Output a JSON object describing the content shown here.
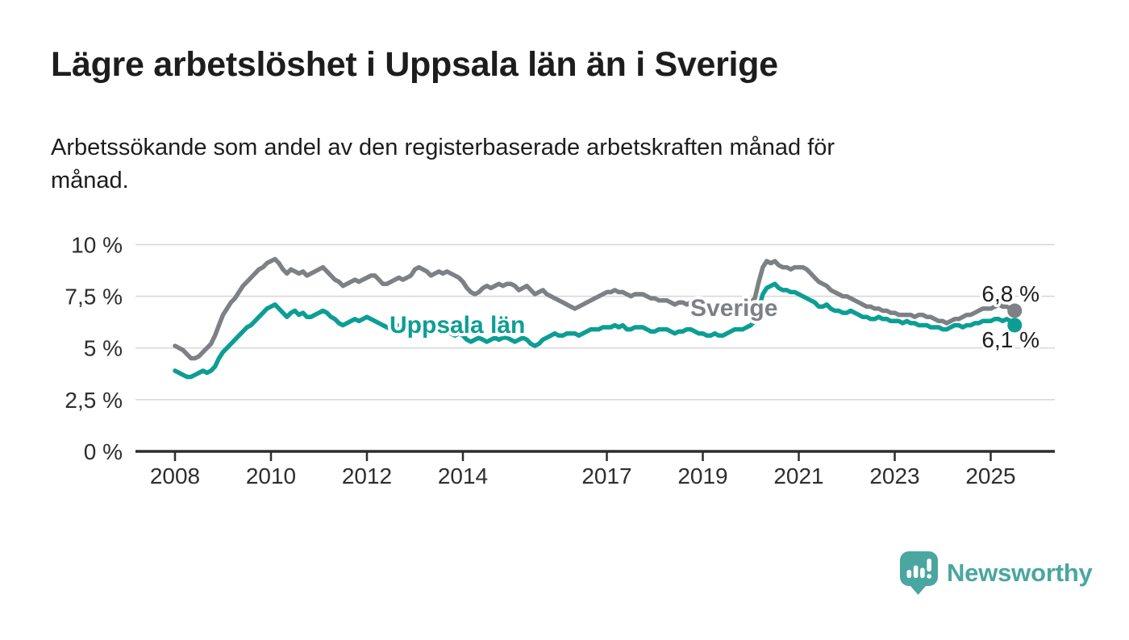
{
  "header": {
    "title": "Lägre arbetslöshet i Uppsala län än i Sverige",
    "subtitle_lines": [
      "Arbetssökande som andel av den registerbaserade arbetskraften månad för",
      "månad."
    ]
  },
  "chart_data": {
    "type": "line",
    "unit": "%",
    "frequency": "monthly",
    "start_year": 2008,
    "start_month": 1,
    "x_axis": {
      "ticks": [
        2008,
        2010,
        2012,
        2014,
        2017,
        2019,
        2021,
        2023,
        2025
      ],
      "range": [
        2007.1,
        2026.3
      ],
      "grid": false
    },
    "y_axis": {
      "ticks": [
        0,
        2.5,
        5,
        7.5,
        10
      ],
      "tick_labels": [
        "0 %",
        "2,5 %",
        "5 %",
        "7,5 %",
        "10 %"
      ],
      "range": [
        0,
        10
      ],
      "grid": true,
      "grid_color": "#d9d9d9"
    },
    "series": [
      {
        "name": "Sverige",
        "color": "#7d8084",
        "end_label": "6,8 %",
        "last_value": 6.8,
        "values": [
          5.1,
          5.0,
          4.9,
          4.7,
          4.5,
          4.5,
          4.6,
          4.8,
          5.0,
          5.2,
          5.6,
          6.1,
          6.6,
          6.9,
          7.2,
          7.4,
          7.7,
          8.0,
          8.2,
          8.4,
          8.6,
          8.8,
          8.9,
          9.1,
          9.2,
          9.3,
          9.1,
          8.8,
          8.6,
          8.8,
          8.7,
          8.6,
          8.7,
          8.5,
          8.6,
          8.7,
          8.8,
          8.9,
          8.7,
          8.5,
          8.3,
          8.2,
          8.0,
          8.1,
          8.2,
          8.3,
          8.2,
          8.3,
          8.4,
          8.5,
          8.5,
          8.3,
          8.1,
          8.1,
          8.2,
          8.3,
          8.4,
          8.3,
          8.4,
          8.5,
          8.8,
          8.9,
          8.8,
          8.7,
          8.5,
          8.6,
          8.7,
          8.6,
          8.7,
          8.6,
          8.5,
          8.4,
          8.2,
          7.9,
          7.7,
          7.6,
          7.7,
          7.9,
          8.0,
          7.9,
          8.0,
          8.1,
          8.0,
          8.1,
          8.1,
          8.0,
          7.8,
          7.9,
          8.0,
          7.8,
          7.6,
          7.7,
          7.8,
          7.6,
          7.5,
          7.4,
          7.3,
          7.2,
          7.1,
          7.0,
          6.9,
          7.0,
          7.1,
          7.2,
          7.3,
          7.4,
          7.5,
          7.6,
          7.7,
          7.7,
          7.8,
          7.7,
          7.7,
          7.6,
          7.5,
          7.6,
          7.6,
          7.6,
          7.5,
          7.4,
          7.4,
          7.3,
          7.3,
          7.3,
          7.2,
          7.1,
          7.2,
          7.2,
          7.1,
          7.2,
          7.1,
          7.0,
          7.0,
          6.9,
          6.7,
          6.7,
          6.8,
          6.9,
          7.0,
          6.9,
          7.0,
          7.0,
          7.0,
          7.1,
          7.2,
          7.4,
          8.2,
          8.9,
          9.2,
          9.1,
          9.2,
          9.0,
          8.9,
          8.9,
          8.8,
          8.9,
          8.9,
          8.9,
          8.8,
          8.6,
          8.4,
          8.2,
          8.1,
          8.0,
          7.8,
          7.7,
          7.6,
          7.5,
          7.5,
          7.4,
          7.3,
          7.2,
          7.1,
          7.0,
          7.0,
          6.9,
          6.9,
          6.8,
          6.8,
          6.7,
          6.7,
          6.6,
          6.6,
          6.6,
          6.6,
          6.5,
          6.6,
          6.6,
          6.5,
          6.5,
          6.4,
          6.3,
          6.3,
          6.2,
          6.3,
          6.4,
          6.4,
          6.5,
          6.6,
          6.6,
          6.7,
          6.8,
          6.9,
          6.9,
          6.9,
          7.0,
          7.1,
          7.0,
          7.0,
          6.9,
          6.8
        ]
      },
      {
        "name": "Uppsala län",
        "color": "#0c9e94",
        "end_label": "6,1 %",
        "last_value": 6.1,
        "values": [
          3.9,
          3.8,
          3.7,
          3.6,
          3.6,
          3.7,
          3.8,
          3.9,
          3.8,
          3.9,
          4.1,
          4.5,
          4.8,
          5.0,
          5.2,
          5.4,
          5.6,
          5.8,
          6.0,
          6.1,
          6.3,
          6.5,
          6.7,
          6.9,
          7.0,
          7.1,
          6.9,
          6.7,
          6.5,
          6.7,
          6.8,
          6.6,
          6.7,
          6.5,
          6.5,
          6.6,
          6.7,
          6.8,
          6.7,
          6.5,
          6.4,
          6.2,
          6.1,
          6.2,
          6.3,
          6.4,
          6.3,
          6.4,
          6.5,
          6.4,
          6.3,
          6.2,
          6.1,
          6.0,
          5.9,
          6.0,
          6.1,
          6.0,
          6.1,
          5.9,
          5.9,
          6.0,
          5.9,
          5.8,
          5.8,
          5.9,
          5.8,
          5.7,
          5.8,
          5.7,
          5.6,
          5.7,
          5.6,
          5.4,
          5.3,
          5.4,
          5.5,
          5.4,
          5.3,
          5.4,
          5.5,
          5.4,
          5.5,
          5.5,
          5.4,
          5.3,
          5.4,
          5.5,
          5.4,
          5.2,
          5.1,
          5.2,
          5.4,
          5.5,
          5.6,
          5.7,
          5.6,
          5.6,
          5.7,
          5.7,
          5.7,
          5.6,
          5.7,
          5.8,
          5.9,
          5.9,
          5.9,
          6.0,
          6.0,
          6.0,
          6.1,
          6.0,
          6.1,
          5.9,
          5.9,
          6.0,
          6.0,
          6.0,
          5.9,
          5.8,
          5.8,
          5.9,
          5.9,
          5.9,
          5.8,
          5.7,
          5.8,
          5.8,
          5.9,
          5.9,
          5.8,
          5.7,
          5.7,
          5.6,
          5.6,
          5.7,
          5.6,
          5.6,
          5.7,
          5.8,
          5.9,
          5.9,
          5.9,
          6.0,
          6.1,
          6.3,
          6.9,
          7.6,
          7.9,
          8.0,
          8.1,
          7.9,
          7.8,
          7.8,
          7.7,
          7.7,
          7.6,
          7.5,
          7.4,
          7.3,
          7.2,
          7.0,
          7.0,
          7.1,
          6.9,
          6.8,
          6.8,
          6.7,
          6.7,
          6.8,
          6.7,
          6.6,
          6.5,
          6.5,
          6.4,
          6.4,
          6.5,
          6.4,
          6.4,
          6.3,
          6.3,
          6.3,
          6.2,
          6.3,
          6.2,
          6.2,
          6.1,
          6.1,
          6.1,
          6.0,
          6.0,
          6.0,
          5.9,
          5.9,
          6.0,
          6.1,
          6.1,
          6.0,
          6.1,
          6.1,
          6.2,
          6.2,
          6.3,
          6.3,
          6.3,
          6.4,
          6.4,
          6.3,
          6.4,
          6.3,
          6.1
        ]
      }
    ]
  },
  "footer": {
    "brand": "Newsworthy",
    "brand_color": "#4aa6a0"
  }
}
